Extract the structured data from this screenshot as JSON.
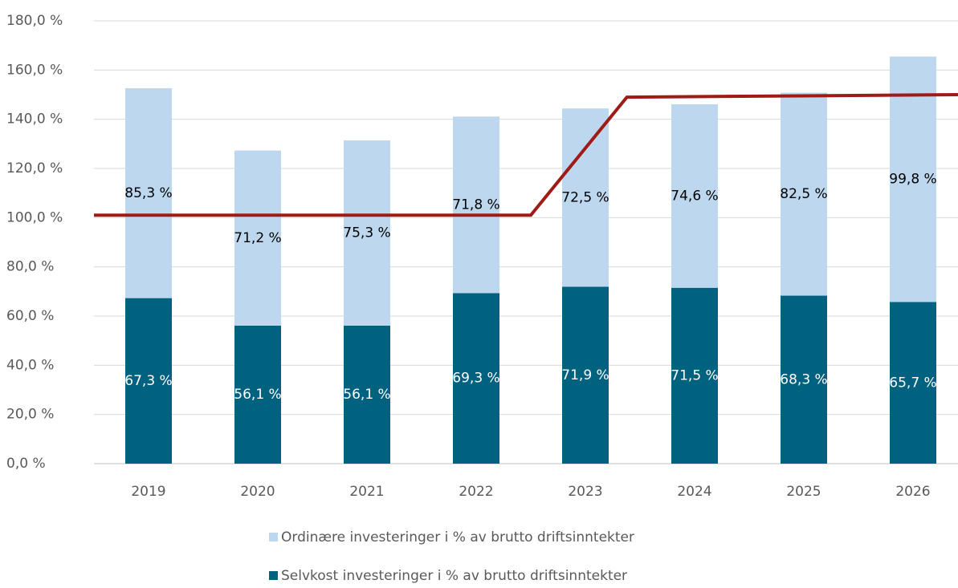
{
  "chart_data": {
    "type": "bar",
    "stacked": true,
    "categories": [
      "2019",
      "2020",
      "2021",
      "2022",
      "2023",
      "2024",
      "2025",
      "2026"
    ],
    "series": [
      {
        "name": "Selvkost investeringer i % av brutto driftsinntekter",
        "color": "#00627f",
        "values": [
          67.3,
          56.1,
          56.1,
          69.3,
          71.9,
          71.5,
          68.3,
          65.7
        ],
        "value_labels": [
          "67,3 %",
          "56,1 %",
          "56,1 %",
          "69,3 %",
          "71,9 %",
          "71,5 %",
          "68,3 %",
          "65,7 %"
        ],
        "label_color": "#ffffff"
      },
      {
        "name": "Ordinære investeringer i % av brutto driftsinntekter",
        "color": "#bdd7ee",
        "values": [
          85.3,
          71.2,
          75.3,
          71.8,
          72.5,
          74.6,
          82.5,
          99.8
        ],
        "value_labels": [
          "85,3 %",
          "71,2 %",
          "75,3 %",
          "71,8 %",
          "72,5 %",
          "74,6 %",
          "82,5 %",
          "99,8 %"
        ],
        "label_color": "#000000"
      }
    ],
    "line": {
      "color": "#9e1b16",
      "x": [
        -0.5,
        3.5,
        4.38,
        7.45
      ],
      "values": [
        101,
        101,
        149,
        150
      ]
    },
    "ylim": [
      0,
      180
    ],
    "yticks": [
      {
        "value": 0,
        "label": "0,0 %"
      },
      {
        "value": 20,
        "label": "20,0 %"
      },
      {
        "value": 40,
        "label": "40,0 %"
      },
      {
        "value": 60,
        "label": "60,0 %"
      },
      {
        "value": 80,
        "label": "80,0 %"
      },
      {
        "value": 100,
        "label": "100,0 %"
      },
      {
        "value": 120,
        "label": "120,0 %"
      },
      {
        "value": 140,
        "label": "140,0 %"
      },
      {
        "value": 160,
        "label": "160,0 %"
      },
      {
        "value": 180,
        "label": "180,0 %"
      }
    ],
    "grid": true
  }
}
